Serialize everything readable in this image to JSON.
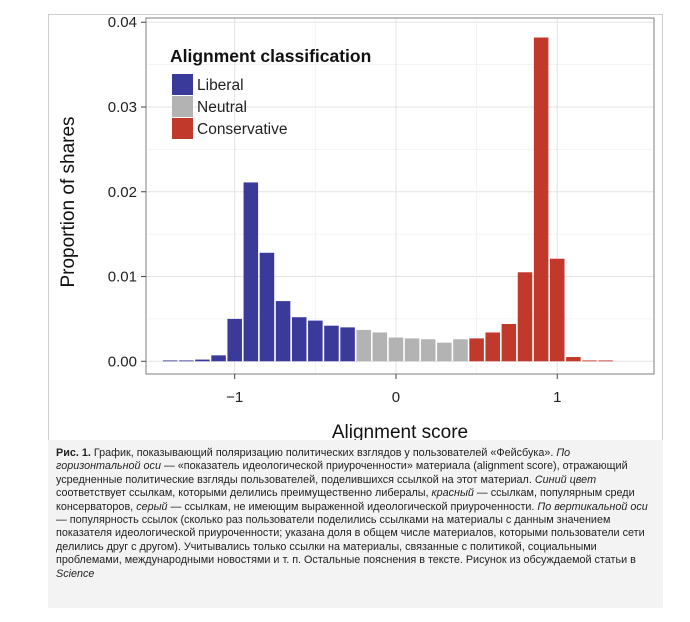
{
  "chart_data": {
    "type": "bar",
    "xlabel": "Alignment score",
    "ylabel": "Proportion of shares",
    "xlim": [
      -1.55,
      1.6
    ],
    "ylim": [
      -0.0015,
      0.0405
    ],
    "x_ticks": [
      -1,
      0,
      1
    ],
    "x_tick_labels": [
      "−1",
      "0",
      "1"
    ],
    "y_ticks": [
      0,
      0.01,
      0.02,
      0.03,
      0.04
    ],
    "y_tick_labels": [
      "0.00",
      "0.01",
      "0.02",
      "0.03",
      "0.04"
    ],
    "grid": true,
    "bin_width": 0.1,
    "legend": {
      "title": "Alignment classification",
      "placement": "top-left",
      "entries": [
        {
          "label": "Liberal",
          "color": "#3a3a9a"
        },
        {
          "label": "Neutral",
          "color": "#b3b3b3"
        },
        {
          "label": "Conservative",
          "color": "#c0392b"
        }
      ]
    },
    "bars": [
      {
        "x": -1.4,
        "y": 0.0001,
        "group": "Liberal"
      },
      {
        "x": -1.3,
        "y": 0.0001,
        "group": "Liberal"
      },
      {
        "x": -1.2,
        "y": 0.0002,
        "group": "Liberal"
      },
      {
        "x": -1.1,
        "y": 0.0007,
        "group": "Liberal"
      },
      {
        "x": -1.0,
        "y": 0.005,
        "group": "Liberal"
      },
      {
        "x": -0.9,
        "y": 0.0211,
        "group": "Liberal"
      },
      {
        "x": -0.8,
        "y": 0.0128,
        "group": "Liberal"
      },
      {
        "x": -0.7,
        "y": 0.0071,
        "group": "Liberal"
      },
      {
        "x": -0.6,
        "y": 0.0052,
        "group": "Liberal"
      },
      {
        "x": -0.5,
        "y": 0.0048,
        "group": "Liberal"
      },
      {
        "x": -0.4,
        "y": 0.0042,
        "group": "Liberal"
      },
      {
        "x": -0.3,
        "y": 0.004,
        "group": "Liberal"
      },
      {
        "x": -0.2,
        "y": 0.0037,
        "group": "Neutral"
      },
      {
        "x": -0.1,
        "y": 0.0034,
        "group": "Neutral"
      },
      {
        "x": 0.0,
        "y": 0.0028,
        "group": "Neutral"
      },
      {
        "x": 0.1,
        "y": 0.0027,
        "group": "Neutral"
      },
      {
        "x": 0.2,
        "y": 0.0026,
        "group": "Neutral"
      },
      {
        "x": 0.3,
        "y": 0.0022,
        "group": "Neutral"
      },
      {
        "x": 0.4,
        "y": 0.0026,
        "group": "Neutral"
      },
      {
        "x": 0.5,
        "y": 0.0027,
        "group": "Conservative"
      },
      {
        "x": 0.6,
        "y": 0.0034,
        "group": "Conservative"
      },
      {
        "x": 0.7,
        "y": 0.0044,
        "group": "Conservative"
      },
      {
        "x": 0.8,
        "y": 0.0105,
        "group": "Conservative"
      },
      {
        "x": 0.9,
        "y": 0.0382,
        "group": "Conservative"
      },
      {
        "x": 1.0,
        "y": 0.0121,
        "group": "Conservative"
      },
      {
        "x": 1.1,
        "y": 0.0005,
        "group": "Conservative"
      },
      {
        "x": 1.2,
        "y": 0.0001,
        "group": "Conservative"
      },
      {
        "x": 1.3,
        "y": 0.0001,
        "group": "Conservative"
      }
    ]
  },
  "caption": {
    "label": "Рис. 1.",
    "segments": [
      {
        "text": " График, показывающий поляризацию политических взглядов у пользователей «Фейсбука». ",
        "italic": false
      },
      {
        "text": "По горизонтальной оси",
        "italic": true
      },
      {
        "text": " — «показатель идеологической приуроченности» материала (alignment score), отражающий усредненные политические взгляды пользователей, поделившихся ссылкой на этот материал. ",
        "italic": false
      },
      {
        "text": "Синий цвет",
        "italic": true
      },
      {
        "text": " соответствует ссылкам, которыми делились преимущественно либералы, ",
        "italic": false
      },
      {
        "text": "красный",
        "italic": true
      },
      {
        "text": " — ссылкам, популярным среди консерваторов, ",
        "italic": false
      },
      {
        "text": "серый",
        "italic": true
      },
      {
        "text": " — ссылкам, не имеющим выраженной идеологической приуроченности. ",
        "italic": false
      },
      {
        "text": "По вертикальной оси",
        "italic": true
      },
      {
        "text": " — популярность ссылок (сколько раз пользователи поделились ссылками на материалы с данным значением показателя идеологической приуроченности; указана доля в общем числе материалов, которыми пользователи сети делились друг с другом). Учитывались только ссылки на материалы, связанные с политикой, социальными проблемами, международными новостями и т. п. Остальные пояснения в тексте. Рисунок из обсуждаемой статьи в ",
        "italic": false
      },
      {
        "text": "Science",
        "italic": true
      }
    ]
  }
}
